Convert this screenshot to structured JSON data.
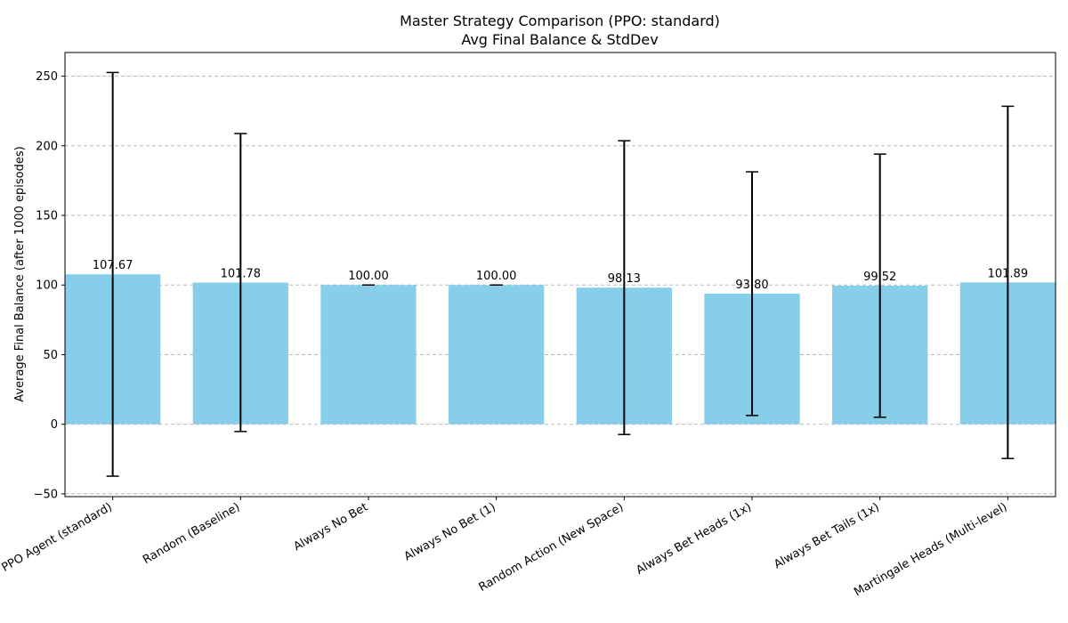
{
  "chart_data": {
    "type": "bar",
    "title": "Master Strategy Comparison (PPO: standard)",
    "subtitle": "Avg Final Balance & StdDev",
    "xlabel": "",
    "ylabel": "Average Final Balance (after 1000 episodes)",
    "categories": [
      "PPO Agent (standard)",
      "Random (Baseline)",
      "Always No Bet",
      "Always No Bet (1)",
      "Random Action (New Space)",
      "Always Bet Heads (1x)",
      "Always Bet Tails (1x)",
      "Martingale Heads (Multi-level)"
    ],
    "values": [
      107.67,
      101.78,
      100.0,
      100.0,
      98.13,
      93.8,
      99.52,
      101.89
    ],
    "value_labels": [
      "107.67",
      "101.78",
      "100.00",
      "100.00",
      "98.13",
      "93.80",
      "99.52",
      "101.89"
    ],
    "error": [
      145.0,
      107.0,
      0.0,
      0.0,
      105.5,
      87.5,
      94.5,
      126.5
    ],
    "yticks": [
      -50,
      0,
      50,
      100,
      150,
      200,
      250
    ],
    "ylim": [
      -52,
      267
    ],
    "grid": "horizontal dashed",
    "colors": {
      "bar": "#87ceeb",
      "error_bar": "#000000",
      "grid": "#b0b0b0"
    }
  }
}
